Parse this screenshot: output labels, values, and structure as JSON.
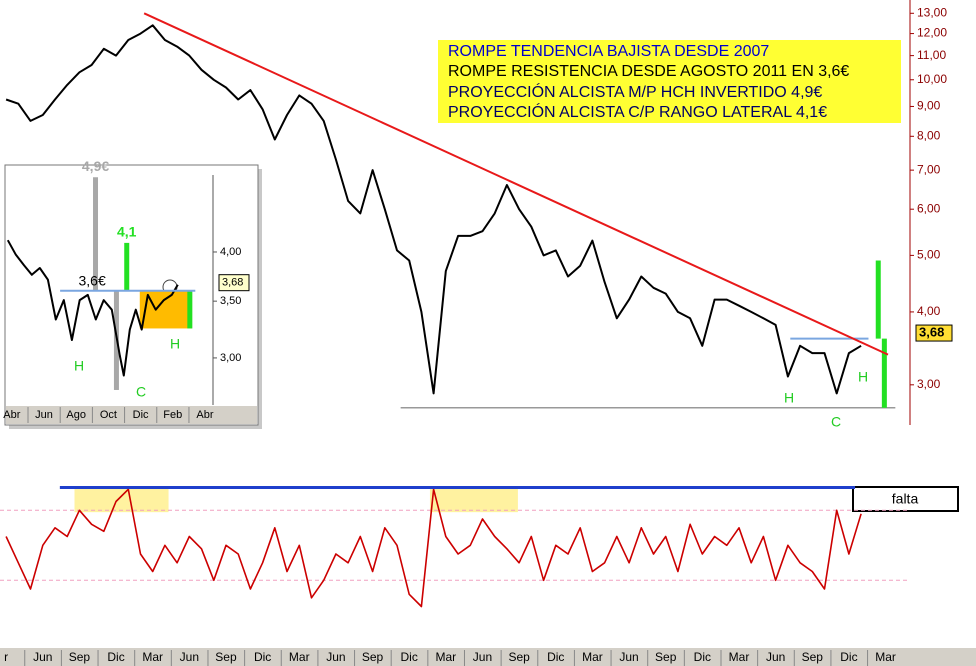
{
  "chart_data": [
    {
      "type": "line",
      "log_scale": true,
      "xlim": [
        -1.5,
        73
      ],
      "ylim": [
        2.56,
        13.7
      ],
      "yticks": [
        {
          "value": 3,
          "label": "3,00"
        },
        {
          "value": 4,
          "label": "4,00"
        },
        {
          "value": 5,
          "label": "5,00"
        },
        {
          "value": 6,
          "label": "6,00"
        },
        {
          "value": 7,
          "label": "7,00"
        },
        {
          "value": 8,
          "label": "8,00"
        },
        {
          "value": 9,
          "label": "9,00"
        },
        {
          "value": 10,
          "label": "10,00"
        },
        {
          "value": 11,
          "label": "11,00"
        },
        {
          "value": 12,
          "label": "12,00"
        },
        {
          "value": 13,
          "label": "13,00"
        }
      ],
      "x": [
        -1,
        0,
        1,
        2,
        3,
        4,
        5,
        6,
        7,
        8,
        9,
        10,
        11,
        12,
        13,
        14,
        15,
        16,
        17,
        18,
        19,
        20,
        21,
        22,
        23,
        24,
        25,
        26,
        27,
        28,
        29,
        30,
        31,
        32,
        33,
        34,
        35,
        36,
        37,
        38,
        39,
        40,
        41,
        42,
        43,
        44,
        45,
        46,
        47,
        48,
        49,
        50,
        51,
        52,
        53,
        54,
        55,
        56,
        57,
        58,
        59,
        60,
        61,
        62,
        63,
        64,
        65,
        66,
        67,
        68,
        69
      ],
      "values": [
        9.25,
        9.1,
        8.5,
        8.7,
        9.25,
        9.8,
        10.3,
        10.6,
        11.3,
        11.0,
        11.7,
        12.0,
        12.4,
        11.7,
        11.4,
        11.0,
        10.4,
        10.0,
        9.7,
        9.25,
        9.6,
        8.9,
        7.9,
        8.7,
        9.4,
        9.1,
        8.5,
        7.3,
        6.2,
        5.9,
        7.0,
        6.0,
        5.1,
        4.9,
        4.0,
        2.9,
        4.7,
        5.4,
        5.4,
        5.5,
        5.9,
        6.6,
        6.0,
        5.6,
        5.0,
        5.1,
        4.6,
        4.8,
        5.3,
        4.5,
        3.9,
        4.2,
        4.6,
        4.4,
        4.3,
        4.0,
        3.9,
        3.5,
        4.2,
        4.2,
        4.1,
        4.0,
        3.9,
        3.8,
        3.1,
        3.5,
        3.4,
        3.4,
        2.9,
        3.4,
        3.5
      ],
      "color": "#000000",
      "trendline": {
        "x": [
          10.3,
          71.2
        ],
        "values": [
          13.0,
          3.38
        ],
        "color": "#e8191a"
      },
      "resistance": {
        "x": [
          63.2,
          69.6
        ],
        "values": [
          3.6,
          3.6
        ],
        "color": "#7aa6e0"
      },
      "support": {
        "x": [
          31.3,
          71.8
        ],
        "values": [
          2.74,
          2.74
        ],
        "color": "#999999"
      },
      "projections": [
        {
          "x": 70.4,
          "from": 3.6,
          "to": 4.9,
          "color": "#22e022"
        },
        {
          "x": 70.9,
          "from": 3.6,
          "to": 2.74,
          "color": "#22e022"
        }
      ],
      "last_price": {
        "value": 3.68,
        "label": "3,68"
      },
      "text_box": [
        "ROMPE TENDENCIA BAJISTA DESDE 2007",
        "ROMPE RESISTENCIA DESDE AGOSTO 2011 EN 3,6€",
        "PROYECCIÓN ALCISTA M/P HCH INVERTIDO 4,9€",
        "PROYECCIÓN ALCISTA C/P RANGO LATERAL 4,1€"
      ],
      "pattern_labels": [
        "H",
        "H",
        "C"
      ]
    },
    {
      "type": "line",
      "log_scale": true,
      "xlim": [
        -0.3,
        12.5
      ],
      "ylim": [
        2.64,
        4.93
      ],
      "yticks": [
        {
          "value": 3,
          "label": "3,00"
        },
        {
          "value": 3.5,
          "label": "3,50"
        },
        {
          "value": 4,
          "label": "4,00"
        }
      ],
      "xticks": [
        {
          "value": 0,
          "label": "Abr"
        },
        {
          "value": 2,
          "label": "Jun"
        },
        {
          "value": 4,
          "label": "Ago"
        },
        {
          "value": 6,
          "label": "Oct"
        },
        {
          "value": 8,
          "label": "Dic"
        },
        {
          "value": 10,
          "label": "Feb"
        },
        {
          "value": 12,
          "label": "Abr"
        }
      ],
      "x": [
        -0.25,
        0.25,
        0.75,
        1.24,
        1.74,
        2.24,
        2.73,
        3.23,
        3.73,
        4.22,
        4.72,
        5.22,
        5.71,
        6.21,
        6.71,
        6.96,
        7.33,
        7.7,
        8.07,
        8.45,
        8.94,
        9.44,
        9.94,
        10.31
      ],
      "values": [
        4.13,
        3.97,
        3.86,
        3.76,
        3.83,
        3.71,
        3.33,
        3.51,
        3.15,
        3.51,
        3.56,
        3.33,
        3.51,
        3.42,
        3.02,
        2.86,
        3.24,
        3.42,
        3.24,
        3.56,
        3.42,
        3.51,
        3.56,
        3.66
      ],
      "color": "#000000",
      "resistance": {
        "x": [
          3,
          11.4
        ],
        "values": [
          3.6,
          3.6
        ],
        "color": "#7aa6e0",
        "label": "3,6€"
      },
      "projections": [
        {
          "x": 5.2,
          "from": 3.6,
          "to": 4.9,
          "color": "#a8a8a8",
          "label": "4,9€"
        },
        {
          "x": 6.5,
          "from": 3.6,
          "to": 2.75,
          "color": "#a8a8a8"
        },
        {
          "x": 7.14,
          "from": 3.6,
          "to": 4.1,
          "color": "#22e022",
          "label": "4,1"
        },
        {
          "x": 11.06,
          "from": 3.6,
          "to": 3.25,
          "color": "#22e022"
        }
      ],
      "range_box": {
        "x": [
          7.95,
          11.2
        ],
        "values": [
          3.6,
          3.25
        ],
        "color": "#ffbb00"
      },
      "last_price": {
        "value": 3.68,
        "label": "3,68"
      },
      "pattern_labels": [
        "H",
        "C",
        "H"
      ]
    },
    {
      "type": "line",
      "xlim": [
        -1.5,
        73
      ],
      "ylim": [
        -7,
        93
      ],
      "xticks": [
        {
          "value": -1,
          "label": "r"
        },
        {
          "value": 2,
          "label": "Jun"
        },
        {
          "value": 5,
          "label": "Sep"
        },
        {
          "value": 8,
          "label": "Dic"
        },
        {
          "value": 11,
          "label": "Mar"
        },
        {
          "value": 14,
          "label": "Jun"
        },
        {
          "value": 17,
          "label": "Sep"
        },
        {
          "value": 20,
          "label": "Dic"
        },
        {
          "value": 23,
          "label": "Mar"
        },
        {
          "value": 26,
          "label": "Jun"
        },
        {
          "value": 29,
          "label": "Sep"
        },
        {
          "value": 32,
          "label": "Dic"
        },
        {
          "value": 35,
          "label": "Mar"
        },
        {
          "value": 38,
          "label": "Jun"
        },
        {
          "value": 41,
          "label": "Sep"
        },
        {
          "value": 44,
          "label": "Dic"
        },
        {
          "value": 47,
          "label": "Mar"
        },
        {
          "value": 50,
          "label": "Jun"
        },
        {
          "value": 53,
          "label": "Sep"
        },
        {
          "value": 56,
          "label": "Dic"
        },
        {
          "value": 59,
          "label": "Mar"
        },
        {
          "value": 62,
          "label": "Jun"
        },
        {
          "value": 65,
          "label": "Sep"
        },
        {
          "value": 68,
          "label": "Dic"
        },
        {
          "value": 71,
          "label": "Mar"
        }
      ],
      "x": [
        -1,
        0,
        1,
        2,
        3,
        4,
        5,
        6,
        7,
        8,
        9,
        10,
        11,
        12,
        13,
        14,
        15,
        16,
        17,
        18,
        19,
        20,
        21,
        22,
        23,
        24,
        25,
        26,
        27,
        28,
        29,
        30,
        31,
        32,
        33,
        34,
        35,
        36,
        37,
        38,
        39,
        40,
        41,
        42,
        43,
        44,
        45,
        46,
        47,
        48,
        49,
        50,
        51,
        52,
        53,
        54,
        55,
        56,
        57,
        58,
        59,
        60,
        61,
        62,
        63,
        64,
        65,
        66,
        67,
        68,
        69
      ],
      "values": [
        55,
        40,
        25,
        50,
        60,
        55,
        70,
        62,
        58,
        75,
        82,
        45,
        35,
        50,
        40,
        55,
        48,
        30,
        50,
        45,
        25,
        40,
        60,
        35,
        50,
        20,
        30,
        45,
        40,
        55,
        35,
        60,
        50,
        22,
        15,
        82,
        55,
        45,
        50,
        65,
        55,
        48,
        40,
        55,
        30,
        50,
        45,
        60,
        35,
        40,
        55,
        40,
        60,
        45,
        55,
        35,
        62,
        45,
        55,
        50,
        60,
        40,
        55,
        30,
        50,
        40,
        35,
        25,
        70,
        45,
        68
      ],
      "color": "#cc0000",
      "ref_lines": [
        70,
        30
      ],
      "trendline": {
        "x": [
          3.4,
          68.5
        ],
        "values": [
          83,
          83
        ],
        "color": "#1f3fcc"
      },
      "highlights": [
        {
          "x": [
            4.6,
            12.3
          ],
          "values": [
            82.6,
            68.9
          ]
        },
        {
          "x": [
            33.7,
            40.9
          ],
          "values": [
            82.6,
            68.9
          ]
        }
      ],
      "note": "falta"
    }
  ]
}
